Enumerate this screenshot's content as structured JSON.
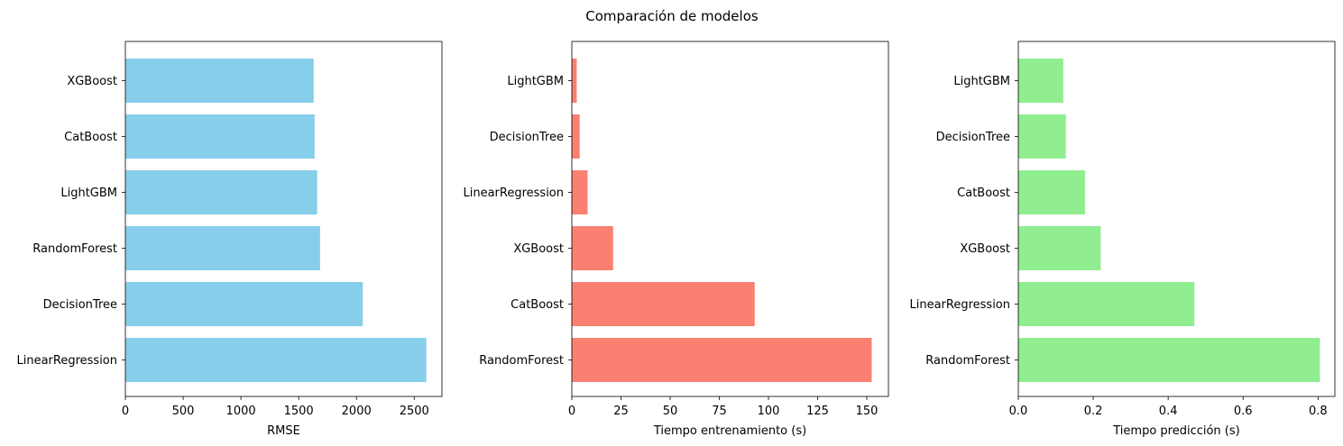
{
  "figure": {
    "suptitle": "Comparación de modelos"
  },
  "chart_data": [
    {
      "type": "bar",
      "orientation": "horizontal",
      "categories": [
        "LinearRegression",
        "DecisionTree",
        "RandomForest",
        "LightGBM",
        "CatBoost",
        "XGBoost"
      ],
      "values": [
        2605,
        2055,
        1685,
        1660,
        1638,
        1630
      ],
      "xlabel": "RMSE",
      "ylabel": "",
      "xlim": [
        0,
        2740
      ],
      "xticks": [
        0,
        500,
        1000,
        1500,
        2000,
        2500
      ],
      "xtick_labels": [
        "0",
        "500",
        "1000",
        "1500",
        "2000",
        "2500"
      ],
      "color": "#87ceeb",
      "grid": false
    },
    {
      "type": "bar",
      "orientation": "horizontal",
      "categories": [
        "RandomForest",
        "CatBoost",
        "XGBoost",
        "LinearRegression",
        "DecisionTree",
        "LightGBM"
      ],
      "values": [
        152.5,
        93.0,
        21.0,
        8.0,
        4.0,
        2.5
      ],
      "xlabel": "Tiempo entrenamiento (s)",
      "ylabel": "",
      "xlim": [
        0,
        161
      ],
      "xticks": [
        0,
        25,
        50,
        75,
        100,
        125,
        150
      ],
      "xtick_labels": [
        "0",
        "25",
        "50",
        "75",
        "100",
        "125",
        "150"
      ],
      "color": "#fa8072",
      "grid": false
    },
    {
      "type": "bar",
      "orientation": "horizontal",
      "categories": [
        "RandomForest",
        "LinearRegression",
        "XGBoost",
        "CatBoost",
        "DecisionTree",
        "LightGBM"
      ],
      "values": [
        0.805,
        0.47,
        0.22,
        0.178,
        0.127,
        0.12
      ],
      "xlabel": "Tiempo predicción (s)",
      "ylabel": "",
      "xlim": [
        0,
        0.845
      ],
      "xticks": [
        0.0,
        0.2,
        0.4,
        0.6,
        0.8
      ],
      "xtick_labels": [
        "0.0",
        "0.2",
        "0.4",
        "0.6",
        "0.8"
      ],
      "color": "#90ee90",
      "grid": false
    }
  ]
}
